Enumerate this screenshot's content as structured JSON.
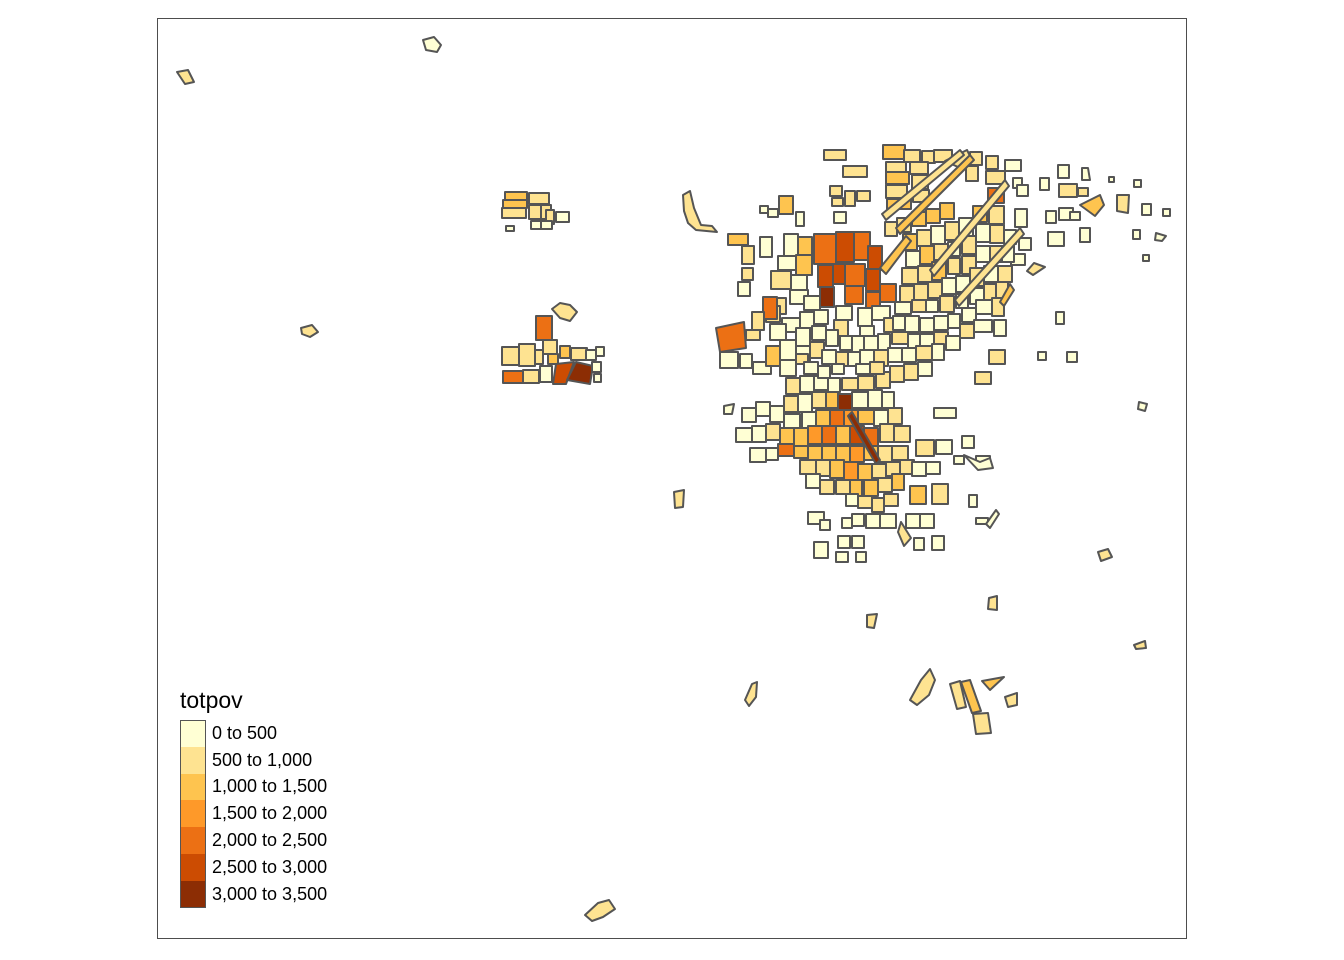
{
  "map": {
    "legend_title": "totpov",
    "border_color": "#555555",
    "classes": [
      {
        "label": "0 to 500",
        "color": "#FFFFD4"
      },
      {
        "label": "500 to 1,000",
        "color": "#FEE391"
      },
      {
        "label": "1,000 to 1,500",
        "color": "#FEC44F"
      },
      {
        "label": "1,500 to 2,000",
        "color": "#FE9929"
      },
      {
        "label": "2,000 to 2,500",
        "color": "#EC7014"
      },
      {
        "label": "2,500 to 3,000",
        "color": "#CC4C02"
      },
      {
        "label": "3,000 to 3,500",
        "color": "#8C2D04"
      }
    ]
  }
}
